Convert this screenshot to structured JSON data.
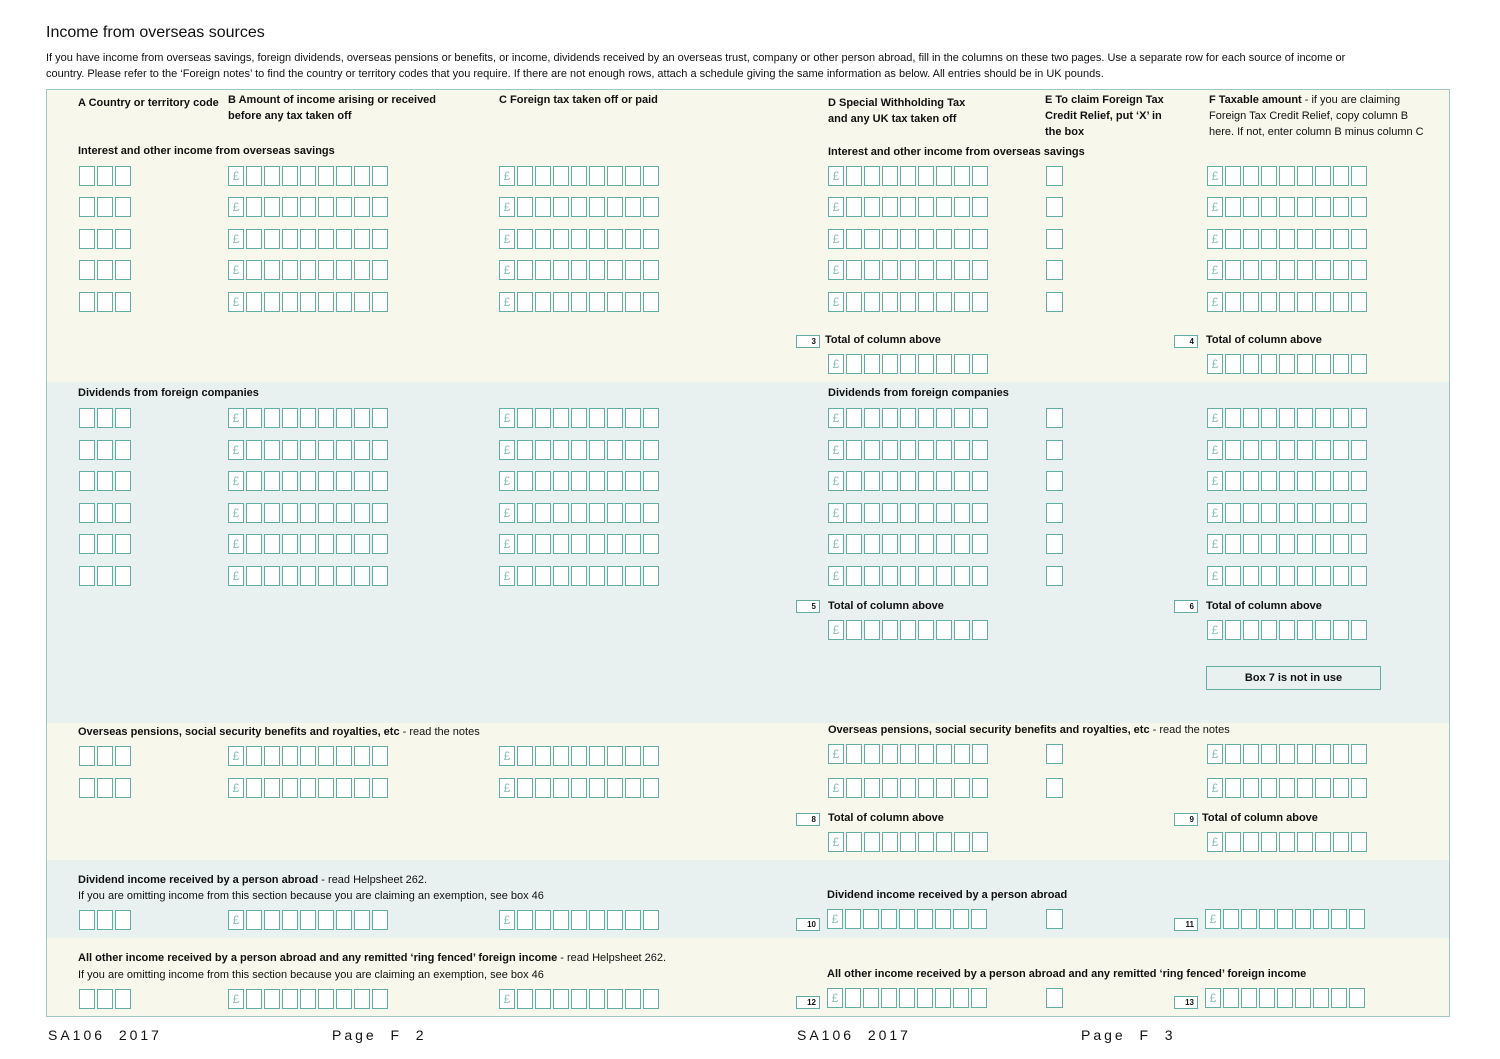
{
  "title": "Income from overseas sources",
  "intro": "If you have income from overseas savings, foreign dividends, overseas pensions or benefits, or income, dividends received by an overseas trust, company or other person abroad, fill in the columns on these two pages. Use a separate row for each source of income or country. Please refer to the ‘Foreign notes’ to find the country or territory codes that you require. If there are not enough rows, attach a schedule giving the same information as below. All entries should be in UK pounds.",
  "columns": {
    "a": "A Country or territory code",
    "b": "B Amount of income arising or received\n    before any tax taken off",
    "c": "C Foreign tax taken off or paid",
    "d": "D Special Withholding Tax\n    and any UK tax taken off",
    "e": "E To claim Foreign Tax\n    Credit Relief, put ‘X’ in\n    the box",
    "f_bold": "F Taxable amount",
    "f_rest": " - if you are claiming\n    Foreign Tax Credit Relief, copy column B\n    here. If not, enter column B minus column C"
  },
  "sections": {
    "savings": "Interest and other income from overseas savings",
    "dividends": "Dividends from foreign companies",
    "pensions": "Overseas pensions, social security benefits and royalties, etc",
    "pensions_note": " - read the notes",
    "dividend_abroad": "Dividend income received by a person abroad",
    "dividend_abroad_note": " - read Helpsheet 262.",
    "exemption_note": "If you are omitting income from this section because you are claiming an exemption, see box 46",
    "other_abroad": "All other income received by a person abroad and any remitted ‘ring fenced’ foreign income",
    "other_abroad_note": " - read Helpsheet 262."
  },
  "currency_symbol": "£",
  "total_label": "Total of column above",
  "box_numbers": {
    "b3": "3",
    "b4": "4",
    "b5": "5",
    "b6": "6",
    "b8": "8",
    "b9": "9",
    "b10": "10",
    "b11": "11",
    "b12": "12",
    "b13": "13"
  },
  "box7_note": "Box 7 is not in use",
  "footer": {
    "left_form": "SA106  2017",
    "left_page": "Page  F  2",
    "right_form": "SA106  2017",
    "right_page": "Page  F  3"
  },
  "colors": {
    "border": "#62aea4",
    "cream": "#f8f7ec",
    "teal": "#e8f1ef"
  }
}
